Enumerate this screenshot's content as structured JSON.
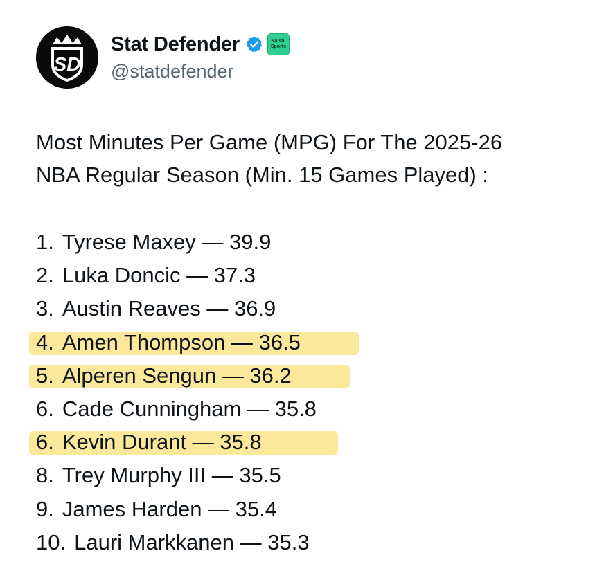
{
  "account": {
    "avatar_icon": "sd-crown-logo-icon",
    "avatar_letters": "SD",
    "display_name": "Stat Defender",
    "verified_icon": "verified-badge-icon",
    "affiliate_badge_top": "Kalshi",
    "affiliate_badge_bottom": "Sports",
    "handle": "@statdefender"
  },
  "post": {
    "text_line1": "Most Minutes Per Game (MPG) For The 2025-26",
    "text_line2": "NBA Regular Season (Min. 15 Games Played) :"
  },
  "list": {
    "highlight_color": "#fbe489",
    "items": [
      {
        "rank": "1.",
        "text": "Tyrese Maxey — 39.9",
        "highlighted": false
      },
      {
        "rank": "2.",
        "text": "Luka Doncic — 37.3",
        "highlighted": false
      },
      {
        "rank": "3.",
        "text": "Austin Reaves — 36.9",
        "highlighted": false
      },
      {
        "rank": "4.",
        "text": "Amen Thompson — 36.5",
        "highlighted": true
      },
      {
        "rank": "5.",
        "text": "Alperen Sengun — 36.2",
        "highlighted": true
      },
      {
        "rank": "6.",
        "text": "Cade Cunningham — 35.8",
        "highlighted": false
      },
      {
        "rank": "6.",
        "text": "Kevin Durant — 35.8",
        "highlighted": true
      },
      {
        "rank": "8.",
        "text": "Trey Murphy III — 35.5",
        "highlighted": false
      },
      {
        "rank": "9.",
        "text": "James Harden — 35.4",
        "highlighted": false
      },
      {
        "rank": "10.",
        "text": "Lauri Markkanen — 35.3",
        "highlighted": false
      }
    ]
  }
}
